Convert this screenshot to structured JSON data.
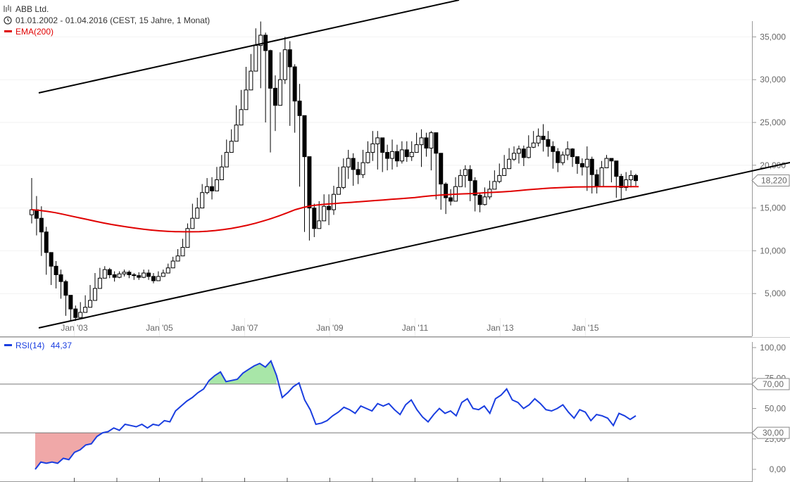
{
  "header": {
    "title": "ABB Ltd.",
    "range": "01.01.2002 - 01.04.2016 (CEST, 15 Jahre, 1 Monat)",
    "ema_label": "EMA(200)"
  },
  "rsi_header": {
    "label": "RSI(14)",
    "value": "44,37"
  },
  "colors": {
    "candle": "#000000",
    "ema": "#e00000",
    "rsi": "#1a3ee0",
    "rsi_overbought_fill": "#a8e6a8",
    "rsi_oversold_fill": "#f0a8a8",
    "grid": "#d8d8d8"
  },
  "chart_data": [
    {
      "type": "candlestick",
      "y_ticks": [
        "5,000",
        "10,000",
        "15,000",
        "20,000",
        "25,000",
        "30,000",
        "35,000"
      ],
      "y_tick_values": [
        5000,
        10000,
        15000,
        20000,
        25000,
        30000,
        35000
      ],
      "x_ticks": [
        "Jan '03",
        "Jan '05",
        "Jan '07",
        "Jan '09",
        "Jan '11",
        "Jan '13",
        "Jan '15"
      ],
      "x_tick_values": [
        2003,
        2005,
        2007,
        2009,
        2011,
        2013,
        2015
      ],
      "x_range": [
        2002.0,
        2016.25
      ],
      "y_range": [
        0,
        38000
      ],
      "last_price_label": "18,220",
      "last_price": 18220,
      "candles_close": [
        14800,
        13800,
        12200,
        9800,
        8200,
        7200,
        6400,
        4800,
        3200,
        2200,
        2800,
        3400,
        4200,
        5600,
        6800,
        7800,
        7200,
        6900,
        7300,
        7500,
        7200,
        7100,
        6900,
        7400,
        7000,
        6500,
        7000,
        7400,
        8000,
        8800,
        9400,
        10400,
        12600,
        13800,
        15000,
        16800,
        17500,
        17000,
        18300,
        19800,
        21500,
        22800,
        24700,
        26500,
        28800,
        31000,
        34000,
        35200,
        33400,
        29000,
        27000,
        30000,
        33500,
        31500,
        27500,
        25800,
        21000,
        15000,
        12600,
        13500,
        15200,
        14800,
        16600,
        17400,
        19800,
        20800,
        19500,
        18900,
        20300,
        21500,
        22500,
        23200,
        21500,
        20800,
        21600,
        20500,
        21800,
        21000,
        21500,
        22400,
        23200,
        22000,
        23800,
        21400,
        17800,
        16200,
        15800,
        17500,
        18800,
        19500,
        18200,
        16500,
        15400,
        16300,
        17200,
        18100,
        18800,
        19600,
        20700,
        21400,
        21900,
        20900,
        22100,
        22600,
        23400,
        23000,
        22200,
        21600,
        20300,
        21200,
        21900,
        21000,
        20200,
        19800,
        20700,
        18900,
        17500,
        19700,
        20800,
        20500,
        18700,
        17400,
        18300,
        18800,
        18200
      ],
      "candles_high": [
        18500,
        16400,
        15200,
        12800,
        9600,
        8800,
        7800,
        6600,
        4800,
        3600,
        4000,
        4800,
        6000,
        7400,
        8000,
        8200,
        8000,
        7600,
        7600,
        7800,
        7700,
        7400,
        7500,
        7800,
        7800,
        7400,
        7600,
        7800,
        8500,
        9300,
        10200,
        11400,
        13200,
        15500,
        16200,
        17800,
        18500,
        18600,
        19800,
        21200,
        23000,
        24200,
        27000,
        28800,
        31500,
        33000,
        36000,
        36800,
        35500,
        33500,
        30500,
        33200,
        35000,
        34500,
        31800,
        29500,
        25000,
        19000,
        15500,
        15800,
        16600,
        16600,
        17600,
        19800,
        20800,
        21800,
        21400,
        20400,
        21800,
        22800,
        24000,
        24000,
        22800,
        22400,
        23000,
        22400,
        22800,
        22800,
        22800,
        23800,
        24200,
        23800,
        24000,
        23800,
        21000,
        18000,
        17200,
        18600,
        19500,
        20000,
        20000,
        18600,
        16800,
        17400,
        18200,
        19400,
        20200,
        21200,
        22000,
        22200,
        22300,
        22300,
        23500,
        24000,
        24300,
        24800,
        24000,
        22800,
        22000,
        21600,
        22800,
        22000,
        21000,
        20800,
        22200,
        21000,
        19500,
        20500,
        21200,
        20800,
        20200,
        19000,
        19200,
        19400,
        19000
      ],
      "candles_low": [
        13200,
        11800,
        9400,
        7200,
        6000,
        5600,
        4400,
        2400,
        1800,
        1800,
        2400,
        3000,
        3800,
        5000,
        6000,
        7000,
        6800,
        6400,
        6800,
        7000,
        6800,
        6600,
        6600,
        6800,
        6600,
        6200,
        6500,
        7000,
        7600,
        8200,
        8800,
        10000,
        11800,
        13200,
        14200,
        15600,
        16600,
        16000,
        17200,
        18800,
        20600,
        22000,
        23400,
        25200,
        27600,
        30000,
        32400,
        29000,
        25000,
        21500,
        24000,
        28400,
        29500,
        24600,
        23800,
        17500,
        12200,
        11200,
        11600,
        12600,
        14000,
        13000,
        14200,
        16800,
        17200,
        18400,
        17600,
        17800,
        18500,
        20200,
        20500,
        19500,
        19200,
        19400,
        19500,
        19800,
        20200,
        20400,
        20500,
        21500,
        19800,
        21000,
        19400,
        16000,
        14800,
        14300,
        15300,
        15800,
        17600,
        17400,
        15800,
        14600,
        14500,
        15300,
        16000,
        17200,
        17900,
        18800,
        19600,
        20500,
        20200,
        19900,
        20800,
        22000,
        22200,
        21600,
        21000,
        19600,
        19200,
        20000,
        20600,
        19800,
        19000,
        18800,
        17000,
        16700,
        16700,
        18600,
        19800,
        18000,
        16200,
        16000,
        17000,
        17400,
        17600
      ],
      "ema": [
        14800,
        14720,
        14600,
        14450,
        14250,
        14050,
        13850,
        13650,
        13450,
        13250,
        13080,
        12920,
        12780,
        12640,
        12520,
        12420,
        12340,
        12280,
        12240,
        12220,
        12220,
        12240,
        12290,
        12370,
        12480,
        12620,
        12790,
        12990,
        13220,
        13480,
        13770,
        14090,
        14440,
        14800,
        15060,
        15260,
        15380,
        15460,
        15530,
        15600,
        15660,
        15730,
        15800,
        15870,
        15940,
        16010,
        16080,
        16150,
        16230,
        16330,
        16420,
        16500,
        16560,
        16610,
        16650,
        16690,
        16740,
        16790,
        16840,
        16890,
        16950,
        17030,
        17120,
        17200,
        17270,
        17330,
        17380,
        17420,
        17450,
        17470,
        17480,
        17490,
        17490,
        17490,
        17490,
        17490,
        17490
      ],
      "trendlines": [
        {
          "from": [
            2002.1,
            1000
          ],
          "to": [
            2016.25,
            19800
          ]
        },
        {
          "from": [
            2002.1,
            28400
          ],
          "to": [
            2009.3,
            39000
          ]
        }
      ]
    },
    {
      "type": "line",
      "series": [
        {
          "name": "RSI(14)",
          "values": [
            0,
            6,
            5,
            6,
            5,
            9,
            8,
            14,
            16,
            20,
            21,
            27,
            30,
            31,
            34,
            32,
            37,
            36,
            35,
            37,
            34,
            37,
            36,
            40,
            39,
            48,
            52,
            56,
            59,
            63,
            66,
            73,
            77,
            80,
            72,
            73,
            74,
            79,
            82,
            85,
            87,
            84,
            89,
            77,
            59,
            63,
            68,
            71,
            57,
            49,
            37,
            38,
            40,
            44,
            47,
            51,
            49,
            46,
            52,
            50,
            48,
            54,
            52,
            54,
            49,
            45,
            53,
            57,
            49,
            43,
            39,
            45,
            50,
            46,
            48,
            44,
            55,
            58,
            50,
            49,
            52,
            46,
            58,
            61,
            66,
            57,
            55,
            50,
            53,
            58,
            54,
            49,
            48,
            50,
            53,
            47,
            42,
            49,
            47,
            40,
            45,
            44,
            42,
            36,
            46,
            44,
            41,
            44
          ]
        }
      ],
      "y_ticks": [
        "0,00",
        "25,00",
        "50,00",
        "75,00",
        "100,00"
      ],
      "y_tick_values": [
        0,
        25,
        50,
        75,
        100
      ],
      "y_range": [
        0,
        100
      ],
      "levels": [
        {
          "label": "70,00",
          "value": 70
        },
        {
          "label": "30,00",
          "value": 30
        }
      ]
    }
  ]
}
